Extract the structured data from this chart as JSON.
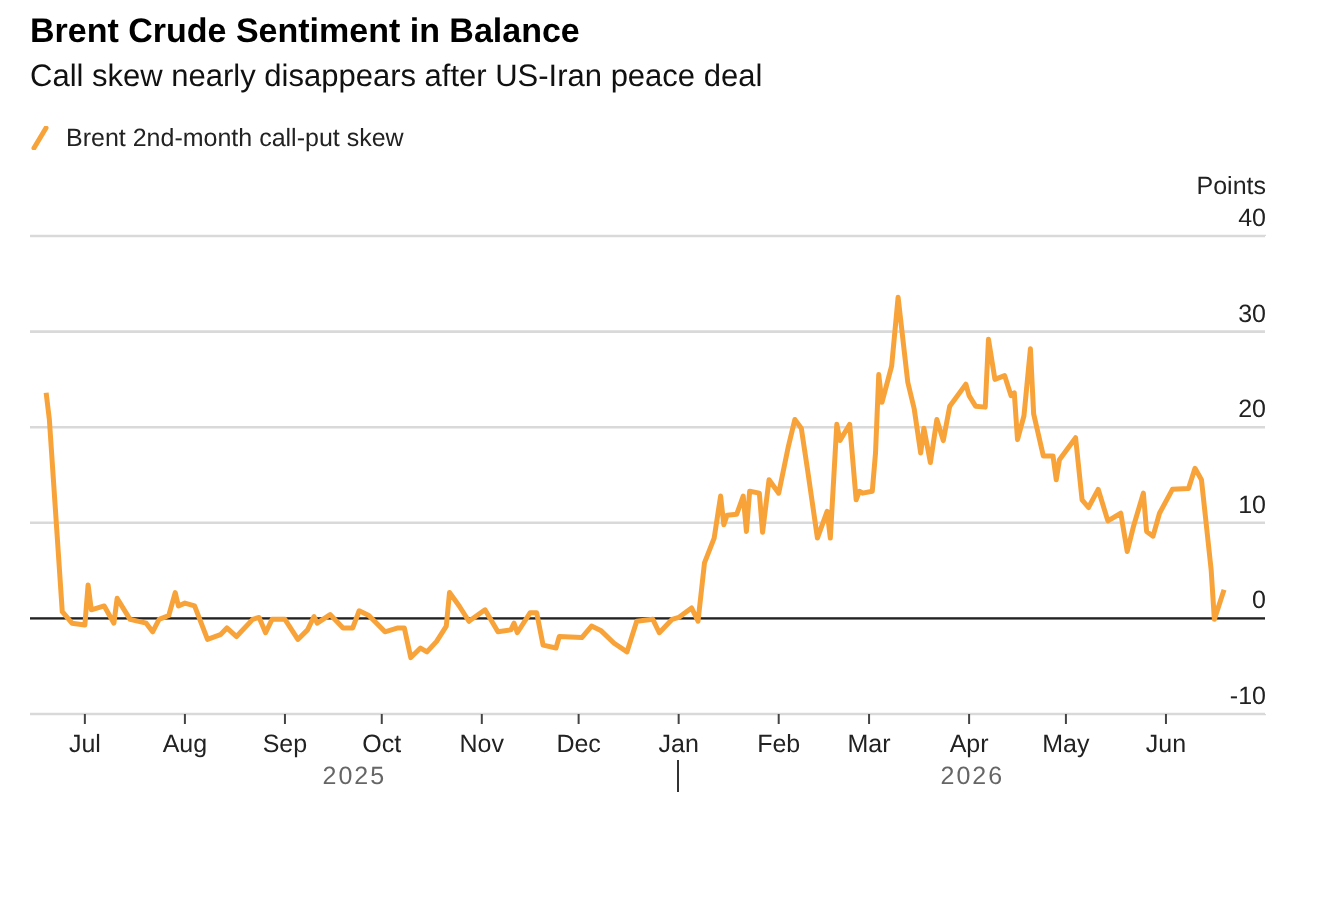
{
  "chart_data": {
    "type": "line",
    "title": "Brent Crude Sentiment in Balance",
    "subtitle": "Call skew nearly disappears after US-Iran peace deal",
    "ylabel": "Points",
    "legend": "top left",
    "grid": "y",
    "xlim": [
      "2025-06-14",
      "2026-07-02"
    ],
    "xticks": [
      {
        "value": "2025-07-01",
        "label": "Jul"
      },
      {
        "value": "2025-08-01",
        "label": "Aug"
      },
      {
        "value": "2025-09-01",
        "label": "Sep"
      },
      {
        "value": "2025-10-01",
        "label": "Oct"
      },
      {
        "value": "2025-11-01",
        "label": "Nov"
      },
      {
        "value": "2025-12-01",
        "label": "Dec"
      },
      {
        "value": "2026-01-01",
        "label": "Jan"
      },
      {
        "value": "2026-02-01",
        "label": "Feb"
      },
      {
        "value": "2026-03-01",
        "label": "Mar"
      },
      {
        "value": "2026-04-01",
        "label": "Apr"
      },
      {
        "value": "2026-05-01",
        "label": "May"
      },
      {
        "value": "2026-06-01",
        "label": "Jun"
      }
    ],
    "ylim": [
      -10,
      40
    ],
    "yticks": [
      -10,
      0,
      10,
      20,
      30,
      40
    ],
    "ref_lines": [
      {
        "axis": "y",
        "value": 0,
        "color": "#222222"
      }
    ],
    "annotations": [
      "2025",
      "2026"
    ],
    "x": [
      "2025-06-19",
      "2025-06-20",
      "2025-06-24",
      "2025-06-27",
      "2025-07-01",
      "2025-07-02",
      "2025-07-03",
      "2025-07-07",
      "2025-07-10",
      "2025-07-11",
      "2025-07-15",
      "2025-07-20",
      "2025-07-22",
      "2025-07-24",
      "2025-07-27",
      "2025-07-29",
      "2025-07-30",
      "2025-08-01",
      "2025-08-04",
      "2025-08-08",
      "2025-08-12",
      "2025-08-14",
      "2025-08-17",
      "2025-08-22",
      "2025-08-24",
      "2025-08-26",
      "2025-08-28",
      "2025-09-01",
      "2025-09-05",
      "2025-09-08",
      "2025-09-10",
      "2025-09-11",
      "2025-09-15",
      "2025-09-19",
      "2025-09-22",
      "2025-09-24",
      "2025-09-27",
      "2025-10-02",
      "2025-10-06",
      "2025-10-08",
      "2025-10-10",
      "2025-10-13",
      "2025-10-15",
      "2025-10-18",
      "2025-10-21",
      "2025-10-22",
      "2025-10-25",
      "2025-10-28",
      "2025-11-02",
      "2025-11-06",
      "2025-11-10",
      "2025-11-11",
      "2025-11-12",
      "2025-11-16",
      "2025-11-18",
      "2025-11-20",
      "2025-11-24",
      "2025-11-25",
      "2025-12-02",
      "2025-12-05",
      "2025-12-08",
      "2025-12-12",
      "2025-12-16",
      "2025-12-19",
      "2025-12-24",
      "2025-12-26",
      "2025-12-30",
      "2026-01-01",
      "2026-01-05",
      "2026-01-07",
      "2026-01-09",
      "2026-01-12",
      "2026-01-14",
      "2026-01-15",
      "2026-01-16",
      "2026-01-19",
      "2026-01-21",
      "2026-01-22",
      "2026-01-23",
      "2026-01-26",
      "2026-01-27",
      "2026-01-29",
      "2026-02-01",
      "2026-02-04",
      "2026-02-06",
      "2026-02-08",
      "2026-02-10",
      "2026-02-13",
      "2026-02-16",
      "2026-02-17",
      "2026-02-19",
      "2026-02-20",
      "2026-02-23",
      "2026-02-25",
      "2026-02-26",
      "2026-02-27",
      "2026-03-02",
      "2026-03-03",
      "2026-03-04",
      "2026-03-05",
      "2026-03-08",
      "2026-03-10",
      "2026-03-13",
      "2026-03-15",
      "2026-03-17",
      "2026-03-18",
      "2026-03-20",
      "2026-03-22",
      "2026-03-24",
      "2026-03-26",
      "2026-03-31",
      "2026-04-01",
      "2026-04-03",
      "2026-04-06",
      "2026-04-07",
      "2026-04-09",
      "2026-04-12",
      "2026-04-14",
      "2026-04-15",
      "2026-04-16",
      "2026-04-18",
      "2026-04-20",
      "2026-04-21",
      "2026-04-24",
      "2026-04-27",
      "2026-04-28",
      "2026-04-29",
      "2026-05-04",
      "2026-05-06",
      "2026-05-08",
      "2026-05-11",
      "2026-05-14",
      "2026-05-18",
      "2026-05-20",
      "2026-05-22",
      "2026-05-25",
      "2026-05-26",
      "2026-05-28",
      "2026-05-30",
      "2026-06-03",
      "2026-06-08",
      "2026-06-10",
      "2026-06-12",
      "2026-06-15",
      "2026-06-16",
      "2026-06-19"
    ],
    "series": [
      {
        "name": "Brent 2nd-month call-put skew",
        "color": "#f8a33a",
        "values": [
          23.6,
          20.8,
          0.7,
          -0.5,
          -0.7,
          3.5,
          0.9,
          1.3,
          -0.5,
          2.1,
          -0.1,
          -0.5,
          -1.4,
          -0.1,
          0.3,
          2.7,
          1.3,
          1.6,
          1.3,
          -2.2,
          -1.7,
          -1.0,
          -1.9,
          -0.1,
          0.1,
          -1.5,
          -0.1,
          -0.1,
          -2.2,
          -1.2,
          0.2,
          -0.5,
          0.4,
          -1.0,
          -1.0,
          0.8,
          0.3,
          -1.4,
          -1.0,
          -1.0,
          -4.1,
          -3.1,
          -3.5,
          -2.4,
          -0.8,
          2.7,
          1.3,
          -0.3,
          0.9,
          -1.4,
          -1.2,
          -0.5,
          -1.5,
          0.6,
          0.6,
          -2.8,
          -3.1,
          -1.9,
          -2.0,
          -0.8,
          -1.3,
          -2.6,
          -3.5,
          -0.3,
          -0.1,
          -1.5,
          -0.1,
          0.1,
          1.1,
          -0.3,
          5.8,
          8.4,
          12.8,
          9.8,
          10.8,
          10.9,
          12.8,
          9.1,
          13.3,
          13.1,
          9.0,
          14.5,
          13.1,
          18.0,
          20.8,
          19.9,
          15.4,
          8.4,
          11.2,
          8.4,
          20.3,
          18.6,
          20.3,
          12.4,
          13.3,
          13.1,
          13.3,
          17.3,
          25.5,
          22.6,
          26.4,
          33.6,
          24.7,
          21.9,
          17.3,
          19.9,
          16.3,
          20.8,
          18.6,
          22.2,
          24.5,
          23.3,
          22.2,
          22.1,
          29.2,
          25.0,
          25.4,
          23.3,
          23.6,
          18.7,
          21.2,
          28.2,
          21.4,
          17.0,
          17.0,
          14.5,
          16.6,
          18.9,
          12.4,
          11.6,
          13.5,
          10.2,
          11.0,
          7.0,
          9.7,
          13.1,
          9.1,
          8.6,
          11.0,
          13.5,
          13.6,
          15.7,
          14.5,
          5.1,
          -0.1,
          3.0
        ]
      }
    ]
  }
}
